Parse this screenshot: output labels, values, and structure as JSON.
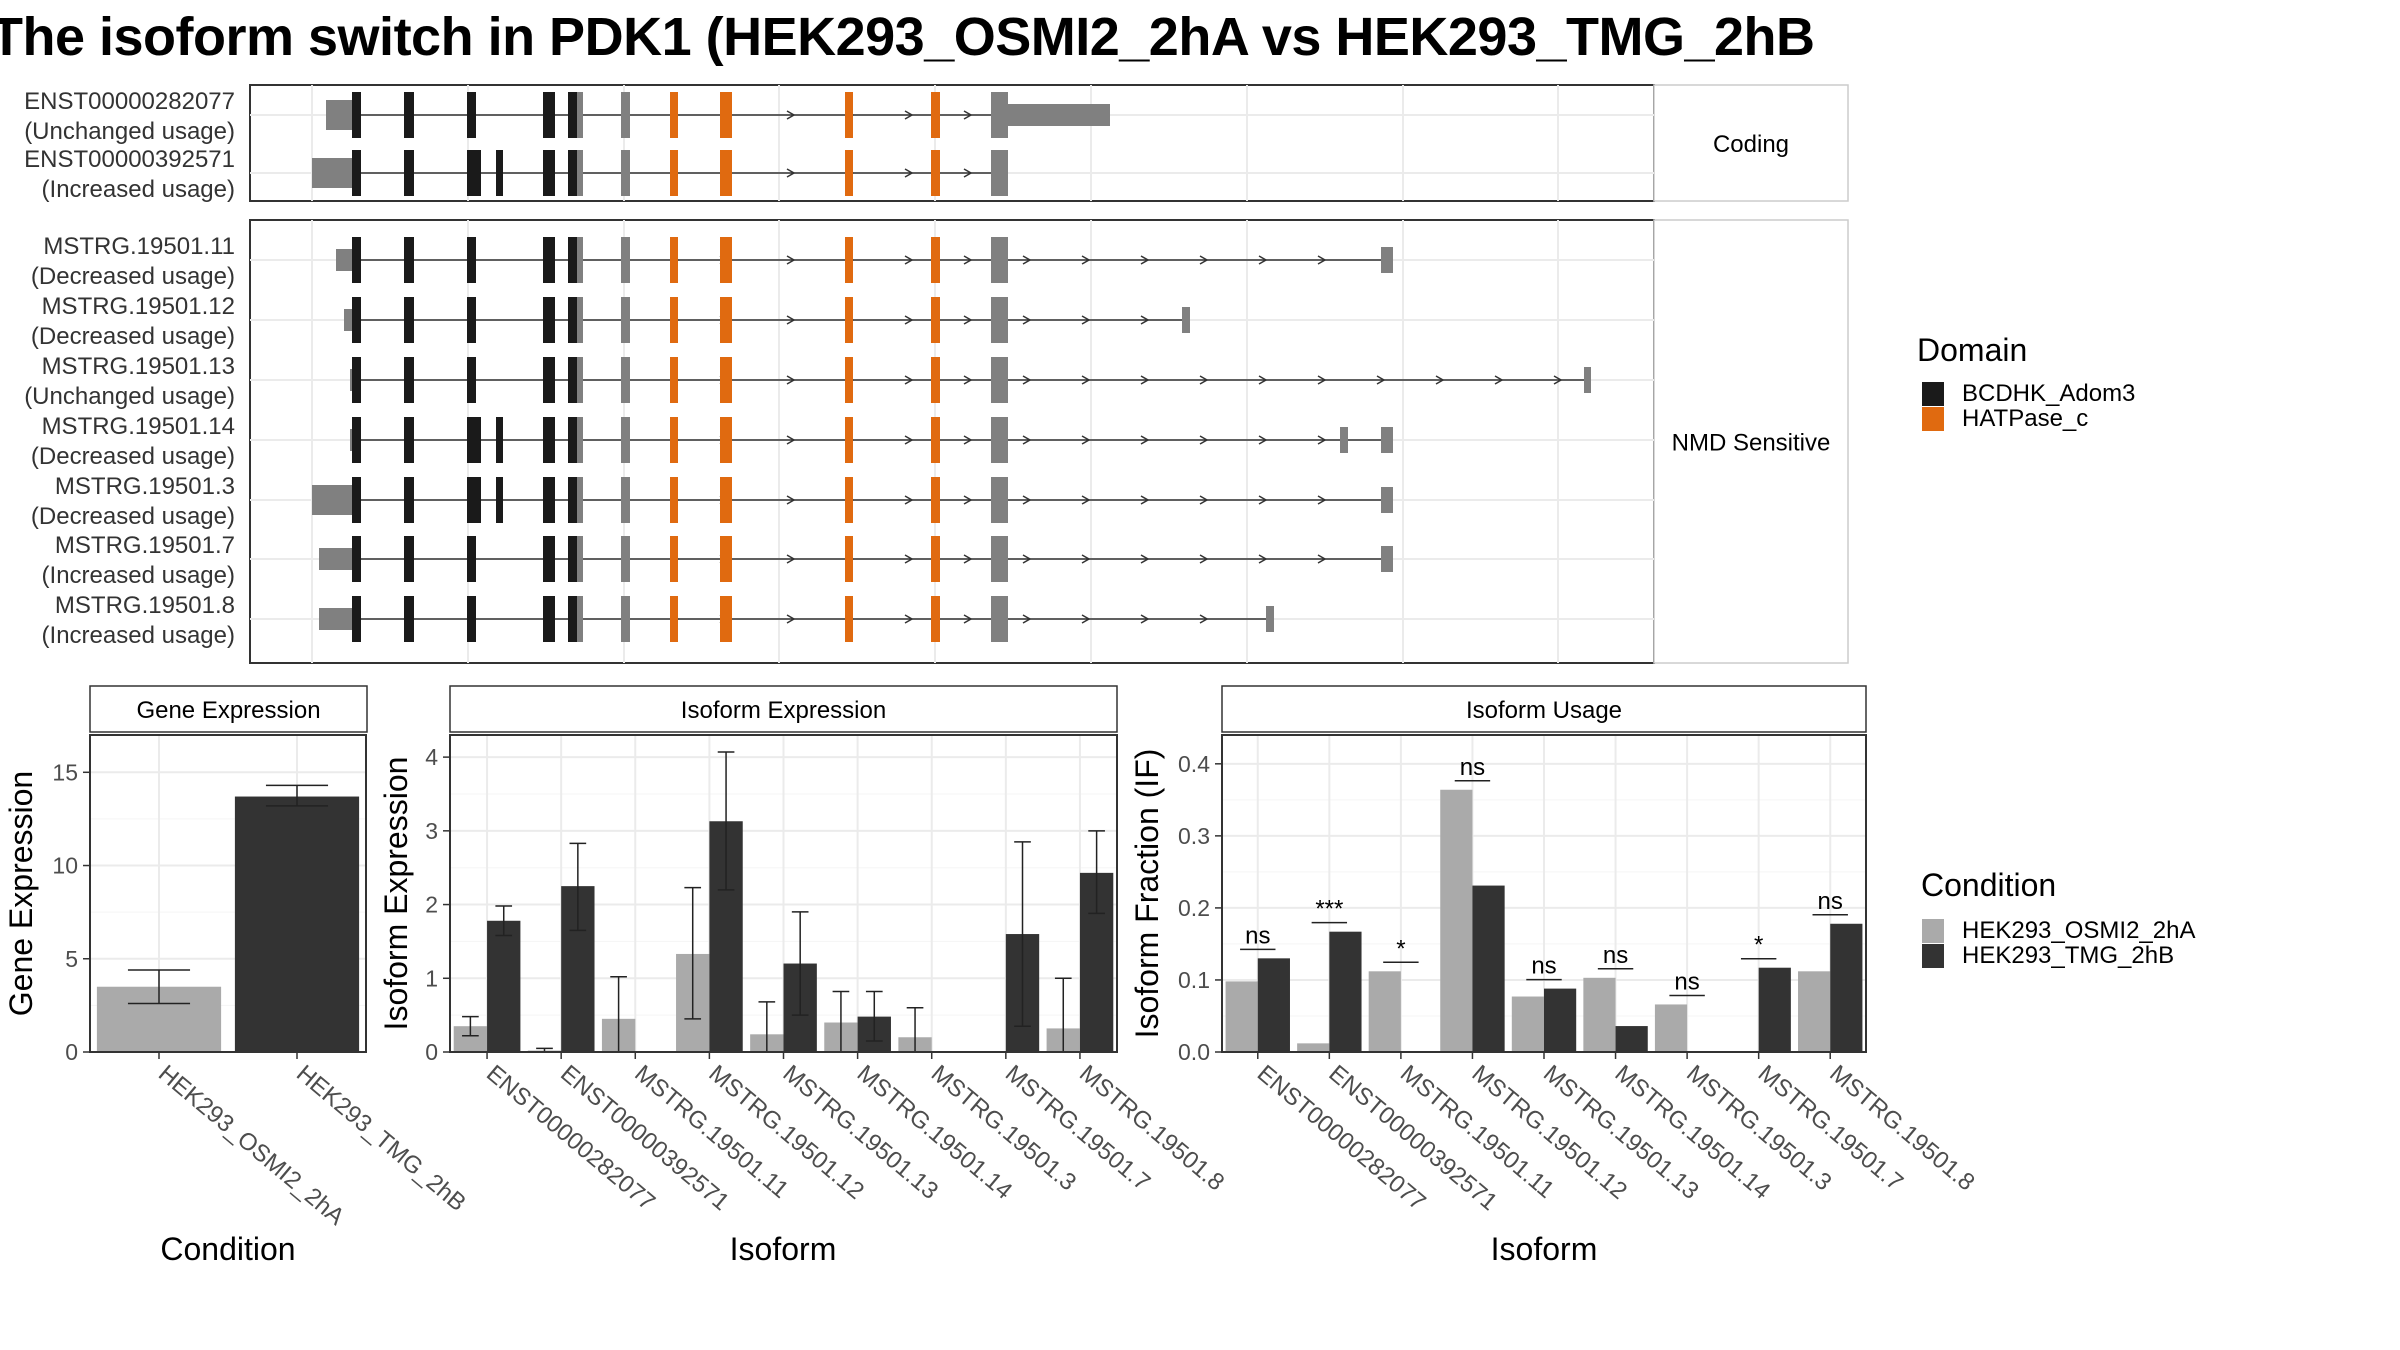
{
  "title": "The isoform switch in PDK1 (HEK293_OSMI2_2hA vs HEK293_TMG_2hB",
  "colors": {
    "domain_bcdhk": "#1a1a1a",
    "domain_hatpase": "#e06a10",
    "exon_plain": "#808080",
    "cond_a": "#aaaaaa",
    "cond_b": "#333333"
  },
  "transcript_panel": {
    "facets": [
      {
        "label": "Coding",
        "transcripts": [
          {
            "name": "ENST00000282077",
            "status": "(Unchanged usage)",
            "kind": "coding"
          },
          {
            "name": "ENST00000392571",
            "status": "(Increased usage)",
            "kind": "coding"
          }
        ]
      },
      {
        "label": "NMD Sensitive",
        "transcripts": [
          {
            "name": "MSTRG.19501.11",
            "status": "(Decreased usage)",
            "kind": "nmd"
          },
          {
            "name": "MSTRG.19501.12",
            "status": "(Decreased usage)",
            "kind": "nmd"
          },
          {
            "name": "MSTRG.19501.13",
            "status": "(Unchanged usage)",
            "kind": "nmd"
          },
          {
            "name": "MSTRG.19501.14",
            "status": "(Decreased usage)",
            "kind": "nmd"
          },
          {
            "name": "MSTRG.19501.3",
            "status": "(Decreased usage)",
            "kind": "nmd"
          },
          {
            "name": "MSTRG.19501.7",
            "status": "(Increased usage)",
            "kind": "nmd"
          },
          {
            "name": "MSTRG.19501.8",
            "status": "(Increased usage)",
            "kind": "nmd"
          }
        ]
      }
    ]
  },
  "legend_domain": {
    "title": "Domain",
    "items": [
      {
        "label": "BCDHK_Adom3",
        "color": "#1a1a1a"
      },
      {
        "label": "HATPase_c",
        "color": "#e06a10"
      }
    ]
  },
  "legend_condition": {
    "title": "Condition",
    "items": [
      {
        "label": "HEK293_OSMI2_2hA",
        "color": "#aaaaaa"
      },
      {
        "label": "HEK293_TMG_2hB",
        "color": "#333333"
      }
    ]
  },
  "chart_data": [
    {
      "type": "bar",
      "title": "Gene Expression",
      "xlabel": "Condition",
      "ylabel": "Gene Expression",
      "ylim": [
        0,
        17
      ],
      "yticks": [
        0,
        5,
        10,
        15
      ],
      "categories": [
        "HEK293_OSMI2_2hA",
        "HEK293_TMG_2hB"
      ],
      "values": [
        3.5,
        13.7
      ],
      "errors": [
        [
          2.6,
          4.4
        ],
        [
          13.2,
          14.3
        ]
      ],
      "colors": [
        "#aaaaaa",
        "#333333"
      ]
    },
    {
      "type": "bar",
      "title": "Isoform Expression",
      "xlabel": "Isoform",
      "ylabel": "Isoform Expression",
      "ylim": [
        0,
        4.3
      ],
      "yticks": [
        0,
        1,
        2,
        3,
        4
      ],
      "categories": [
        "ENST00000282077",
        "ENST00000392571",
        "MSTRG.19501.11",
        "MSTRG.19501.12",
        "MSTRG.19501.13",
        "MSTRG.19501.14",
        "MSTRG.19501.3",
        "MSTRG.19501.7",
        "MSTRG.19501.8"
      ],
      "series": [
        {
          "name": "HEK293_OSMI2_2hA",
          "values": [
            0.35,
            0.02,
            0.45,
            1.33,
            0.24,
            0.4,
            0.2,
            0.0,
            0.32
          ],
          "errors": [
            [
              0.22,
              0.48
            ],
            [
              0.0,
              0.05
            ],
            [
              0.0,
              1.02
            ],
            [
              0.45,
              2.23
            ],
            [
              0.0,
              0.68
            ],
            [
              0.0,
              0.82
            ],
            [
              0.0,
              0.6
            ],
            null,
            [
              0.0,
              1.0
            ]
          ]
        },
        {
          "name": "HEK293_TMG_2hB",
          "values": [
            1.78,
            2.25,
            0.0,
            3.13,
            1.2,
            0.48,
            0.0,
            1.6,
            2.43
          ],
          "errors": [
            [
              1.58,
              1.98
            ],
            [
              1.65,
              2.83
            ],
            null,
            [
              2.2,
              4.07
            ],
            [
              0.5,
              1.9
            ],
            [
              0.15,
              0.82
            ],
            null,
            [
              0.35,
              2.85
            ],
            [
              1.88,
              3.0
            ]
          ]
        }
      ]
    },
    {
      "type": "bar",
      "title": "Isoform Usage",
      "xlabel": "Isoform",
      "ylabel": "Isoform Fraction (IF)",
      "ylim": [
        0,
        0.44
      ],
      "yticks": [
        0.0,
        0.1,
        0.2,
        0.3,
        0.4
      ],
      "categories": [
        "ENST00000282077",
        "ENST00000392571",
        "MSTRG.19501.11",
        "MSTRG.19501.12",
        "MSTRG.19501.13",
        "MSTRG.19501.14",
        "MSTRG.19501.3",
        "MSTRG.19501.7",
        "MSTRG.19501.8"
      ],
      "series": [
        {
          "name": "HEK293_OSMI2_2hA",
          "values": [
            0.098,
            0.012,
            0.112,
            0.364,
            0.077,
            0.103,
            0.066,
            0.0,
            0.112
          ]
        },
        {
          "name": "HEK293_TMG_2hB",
          "values": [
            0.13,
            0.167,
            0.0,
            0.231,
            0.088,
            0.036,
            0.0,
            0.117,
            0.178
          ]
        }
      ],
      "annotations": [
        "ns",
        "***",
        "*",
        "ns",
        "ns",
        "ns",
        "ns",
        "*",
        "ns"
      ]
    }
  ]
}
